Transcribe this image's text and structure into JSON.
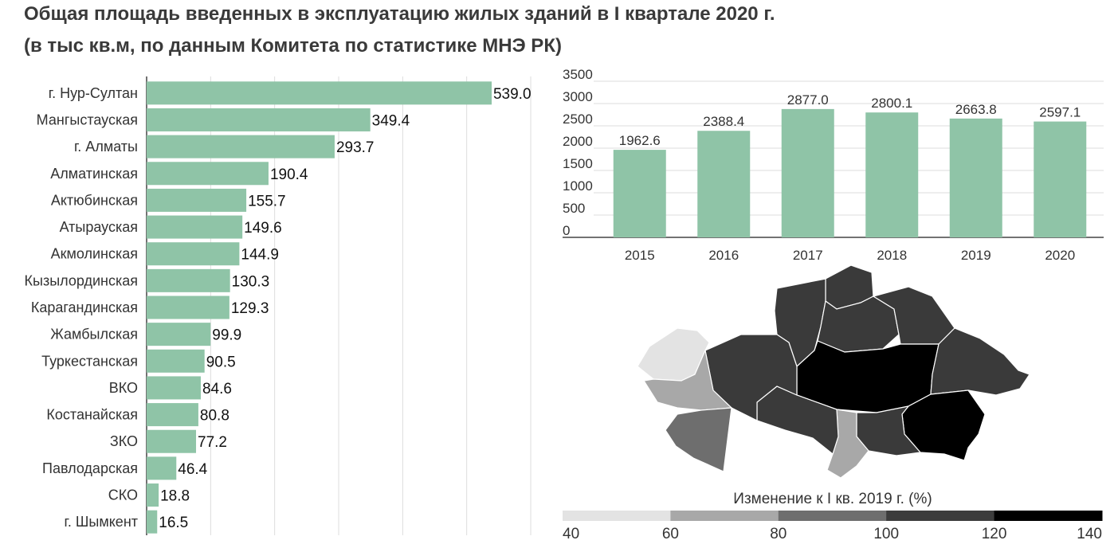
{
  "title_line1": "Общая площадь введенных в эксплуатацию жилых зданий в I квартале 2020 г.",
  "title_line2": "(в тыс кв.м, по данным Комитета по статистике МНЭ РК)",
  "colors": {
    "bar": "#8fc4a7",
    "grid": "#dddddd"
  },
  "chart_data": [
    {
      "type": "bar",
      "orientation": "horizontal",
      "categories": [
        "г. Нур-Султан",
        "Мангыстауская",
        "г. Алматы",
        "Алматинская",
        "Актюбинская",
        "Атырауская",
        "Акмолинская",
        "Кызылординская",
        "Карагандинская",
        "Жамбылская",
        "Туркестанская",
        "ВКО",
        "Костанайская",
        "ЗКО",
        "Павлодарская",
        "СКО",
        "г. Шымкент"
      ],
      "values": [
        539.0,
        349.4,
        293.7,
        190.4,
        155.7,
        149.6,
        144.9,
        130.3,
        129.3,
        99.9,
        90.5,
        84.6,
        80.8,
        77.2,
        46.4,
        18.8,
        16.5
      ],
      "value_labels": [
        "539.0",
        "349.4",
        "293.7",
        "190.4",
        "155.7",
        "149.6",
        "144.9",
        "130.3",
        "129.3",
        "99.9",
        "90.5",
        "84.6",
        "80.8",
        "77.2",
        "46.4",
        "18.8",
        "16.5"
      ],
      "xlim": [
        0,
        600
      ]
    },
    {
      "type": "bar",
      "categories": [
        "2015",
        "2016",
        "2017",
        "2018",
        "2019",
        "2020"
      ],
      "values": [
        1962.6,
        2388.4,
        2877.0,
        2800.1,
        2663.8,
        2597.1
      ],
      "value_labels": [
        "1962.6",
        "2388.4",
        "2877.0",
        "2800.1",
        "2663.8",
        "2597.1"
      ],
      "yticks": [
        "0",
        "500",
        "1000",
        "1500",
        "2000",
        "2500",
        "3000",
        "3500"
      ],
      "ylim": [
        0,
        3500
      ]
    },
    {
      "type": "heatmap",
      "legend_title": "Изменение к I кв. 2019 г. (%)",
      "scale_ticks": [
        "40",
        "60",
        "80",
        "100",
        "120",
        "140"
      ],
      "scale_colors": [
        "#e3e3e3",
        "#a8a8a8",
        "#6e6e6e",
        "#3c3c3c",
        "#000000"
      ]
    }
  ]
}
